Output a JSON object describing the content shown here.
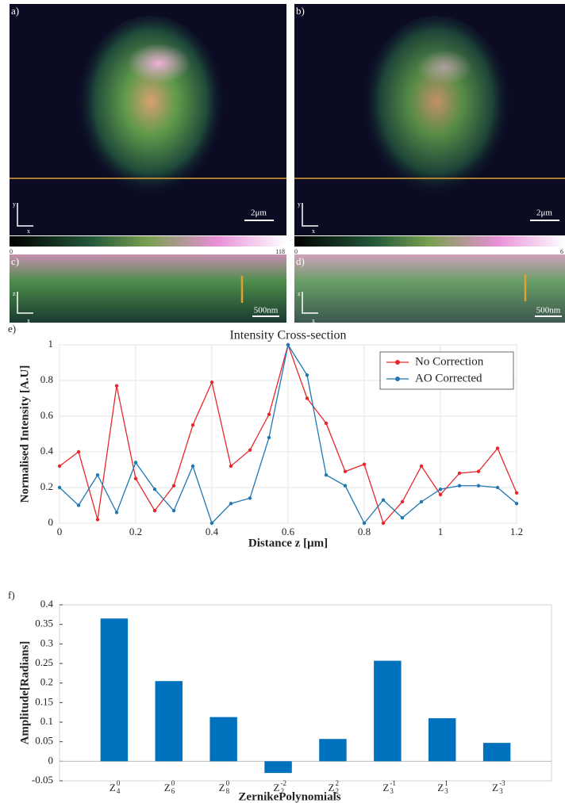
{
  "panels": [
    {
      "label": "a)",
      "scale_bar": "2μm",
      "axes": [
        "y",
        "x"
      ],
      "colorbar": [
        0,
        118
      ]
    },
    {
      "label": "b)",
      "scale_bar": "2μm",
      "axes": [
        "y",
        "x"
      ],
      "colorbar": [
        0,
        6
      ]
    },
    {
      "label": "c)",
      "scale_bar": "500nm",
      "axes": [
        "z",
        "x"
      ]
    },
    {
      "label": "d)",
      "scale_bar": "500nm",
      "axes": [
        "z",
        "x"
      ]
    }
  ],
  "chart_labels": [
    "e)",
    "f)"
  ],
  "chart_data": [
    {
      "type": "line",
      "title": "Intensity Cross-section",
      "x_label": "Distance z [μm]",
      "y_label": "Normalised Intensity [A.U]",
      "x": [
        0,
        0.05,
        0.1,
        0.15,
        0.2,
        0.25,
        0.3,
        0.35,
        0.4,
        0.45,
        0.5,
        0.55,
        0.6,
        0.65,
        0.7,
        0.75,
        0.8,
        0.85,
        0.9,
        0.95,
        1,
        1.05,
        1.1,
        1.15,
        1.2
      ],
      "series": [
        {
          "name": "No Correction",
          "color": "#e8272b",
          "values": [
            0.32,
            0.4,
            0.02,
            0.77,
            0.25,
            0.07,
            0.21,
            0.55,
            0.79,
            0.32,
            0.41,
            0.61,
            1.0,
            0.7,
            0.56,
            0.29,
            0.33,
            0.0,
            0.12,
            0.32,
            0.16,
            0.28,
            0.29,
            0.42,
            0.17
          ]
        },
        {
          "name": "AO Corrected",
          "color": "#1f77b4",
          "values": [
            0.2,
            0.1,
            0.27,
            0.06,
            0.34,
            0.19,
            0.07,
            0.32,
            0.0,
            0.11,
            0.14,
            0.48,
            1.0,
            0.83,
            0.27,
            0.21,
            0.0,
            0.13,
            0.03,
            0.12,
            0.19,
            0.21,
            0.21,
            0.2,
            0.11
          ]
        }
      ],
      "xlim": [
        0,
        1.2
      ],
      "xticks": [
        0,
        0.2,
        0.4,
        0.6,
        0.8,
        1,
        1.2
      ],
      "ylim": [
        0,
        1
      ],
      "yticks": [
        0,
        0.2,
        0.4,
        0.6,
        0.8,
        1
      ],
      "grid": true,
      "legend": "upper right"
    },
    {
      "type": "bar",
      "x_label": "ZernikePolynomials",
      "y_label": "Amplitude[Radians]",
      "categories": [
        {
          "base": "Z",
          "sub": "4",
          "sup": "0"
        },
        {
          "base": "Z",
          "sub": "6",
          "sup": "0"
        },
        {
          "base": "Z",
          "sub": "8",
          "sup": "0"
        },
        {
          "base": "Z",
          "sub": "2",
          "sup": "-2"
        },
        {
          "base": "Z",
          "sub": "2",
          "sup": "2"
        },
        {
          "base": "Z",
          "sub": "3",
          "sup": "-1"
        },
        {
          "base": "Z",
          "sub": "3",
          "sup": "1"
        },
        {
          "base": "Z",
          "sub": "3",
          "sup": "-3"
        }
      ],
      "values": [
        0.365,
        0.205,
        0.113,
        -0.03,
        0.057,
        0.257,
        0.11,
        0.047
      ],
      "color": "#0072bd",
      "ylim": [
        -0.05,
        0.4
      ],
      "yticks": [
        -0.05,
        0,
        0.05,
        0.1,
        0.15,
        0.2,
        0.25,
        0.3,
        0.35,
        0.4
      ],
      "grid": false
    }
  ]
}
